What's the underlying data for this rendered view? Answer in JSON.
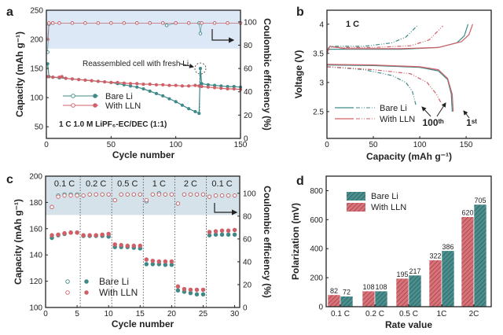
{
  "colors": {
    "bare_li": "#3f8a88",
    "with_lln": "#d06068",
    "shade_a": "#dde8f6",
    "shade_c": "#d5e2ea"
  },
  "chart_data": [
    {
      "panel": "a",
      "type": "scatter",
      "xlabel": "Cycle number",
      "ylabel": "Capacity (mAh g⁻¹)",
      "y2label": "Coulombic efficiency (%)",
      "xlim": [
        0,
        150
      ],
      "ylim": [
        30,
        250
      ],
      "y2lim": [
        0,
        110
      ],
      "xticks": [
        0,
        50,
        100,
        150
      ],
      "yticks": [
        50,
        100,
        150,
        200,
        250
      ],
      "y2ticks": [
        0,
        20,
        40,
        60,
        80,
        100
      ],
      "shaded_y2_from": 77,
      "condition": "1 C   1.0 M LiPF₆-EC/DEC (1:1)",
      "annotation": "Reassembled cell with fresh Li",
      "legend": [
        "Bare Li",
        "With LLN"
      ],
      "legend_position": "lower-left",
      "series": [
        {
          "name": "Bare Li",
          "kind": "capacity",
          "points": [
            [
              1,
              158
            ],
            [
              2,
              136
            ],
            [
              5,
              135
            ],
            [
              10,
              134
            ],
            [
              15,
              133
            ],
            [
              20,
              132
            ],
            [
              25,
              131
            ],
            [
              30,
              130
            ],
            [
              35,
              129
            ],
            [
              40,
              128
            ],
            [
              45,
              127
            ],
            [
              50,
              126
            ],
            [
              55,
              124
            ],
            [
              60,
              122
            ],
            [
              65,
              120
            ],
            [
              70,
              118
            ],
            [
              75,
              115
            ],
            [
              80,
              111
            ],
            [
              85,
              107
            ],
            [
              90,
              103
            ],
            [
              95,
              98
            ],
            [
              100,
              93
            ],
            [
              105,
              87
            ],
            [
              110,
              81
            ],
            [
              115,
              76
            ],
            [
              118,
              73
            ],
            [
              119,
              150
            ],
            [
              120,
              124
            ],
            [
              125,
              122
            ],
            [
              130,
              121
            ],
            [
              135,
              120
            ],
            [
              140,
              119
            ],
            [
              145,
              119
            ],
            [
              150,
              118
            ]
          ]
        },
        {
          "name": "With LLN",
          "kind": "capacity",
          "points": [
            [
              1,
              136
            ],
            [
              5,
              135
            ],
            [
              10,
              135
            ],
            [
              12,
              136
            ],
            [
              15,
              133
            ],
            [
              20,
              132
            ],
            [
              25,
              131
            ],
            [
              30,
              130
            ],
            [
              35,
              129
            ],
            [
              40,
              128
            ],
            [
              45,
              127
            ],
            [
              50,
              126
            ],
            [
              55,
              126
            ],
            [
              60,
              125
            ],
            [
              65,
              124
            ],
            [
              70,
              124
            ],
            [
              75,
              123
            ],
            [
              80,
              123
            ],
            [
              85,
              122
            ],
            [
              90,
              122
            ],
            [
              95,
              121
            ],
            [
              100,
              121
            ],
            [
              105,
              120
            ],
            [
              110,
              120
            ],
            [
              115,
              121
            ],
            [
              118,
              120
            ],
            [
              120,
              119
            ],
            [
              125,
              118
            ],
            [
              130,
              117
            ],
            [
              135,
              116
            ],
            [
              140,
              115
            ],
            [
              145,
              115
            ],
            [
              150,
              114
            ]
          ]
        },
        {
          "name": "Bare Li",
          "kind": "ce",
          "points": [
            [
              1,
              74
            ],
            [
              2,
              98
            ],
            [
              5,
              99
            ],
            [
              10,
              99
            ],
            [
              20,
              99
            ],
            [
              30,
              99
            ],
            [
              40,
              99
            ],
            [
              50,
              99
            ],
            [
              60,
              99
            ],
            [
              70,
              99
            ],
            [
              80,
              99
            ],
            [
              90,
              99
            ],
            [
              93,
              97
            ],
            [
              100,
              99
            ],
            [
              110,
              99
            ],
            [
              118,
              99
            ],
            [
              119,
              90
            ],
            [
              120,
              99
            ],
            [
              130,
              99
            ],
            [
              140,
              99
            ],
            [
              150,
              99
            ]
          ]
        },
        {
          "name": "With LLN",
          "kind": "ce",
          "points": [
            [
              1,
              85
            ],
            [
              2,
              99
            ],
            [
              5,
              99
            ],
            [
              10,
              99
            ],
            [
              20,
              99
            ],
            [
              30,
              99
            ],
            [
              40,
              99
            ],
            [
              50,
              99
            ],
            [
              60,
              99
            ],
            [
              70,
              99
            ],
            [
              80,
              99
            ],
            [
              90,
              99
            ],
            [
              100,
              99
            ],
            [
              110,
              99
            ],
            [
              120,
              99
            ],
            [
              130,
              99
            ],
            [
              140,
              99
            ],
            [
              150,
              99
            ]
          ]
        }
      ]
    },
    {
      "panel": "b",
      "type": "line",
      "xlabel": "Capacity (mAh g⁻¹)",
      "ylabel": "Voltage (V)",
      "xlim": [
        0,
        177
      ],
      "ylim": [
        2.04,
        4.24
      ],
      "xticks": [
        0,
        50,
        100,
        150
      ],
      "yticks": [
        2.5,
        3.0,
        3.5,
        4.0
      ],
      "rate": "1 C",
      "label_100th": "100ᵗʰ",
      "label_1st": "1ˢᵗ",
      "legend": [
        "Bare Li",
        "With LLN"
      ],
      "legend_position": "lower-left",
      "series": [
        {
          "name": "Bare Li",
          "cycle": "1st",
          "kind": "charge",
          "points": [
            [
              0,
              3.5
            ],
            [
              2,
              3.57
            ],
            [
              20,
              3.57
            ],
            [
              80,
              3.57
            ],
            [
              120,
              3.6
            ],
            [
              140,
              3.68
            ],
            [
              148,
              3.8
            ],
            [
              152,
              4.0
            ]
          ]
        },
        {
          "name": "With LLN",
          "cycle": "1st",
          "kind": "charge",
          "points": [
            [
              0,
              3.5
            ],
            [
              3,
              3.62
            ],
            [
              20,
              3.58
            ],
            [
              80,
              3.58
            ],
            [
              120,
              3.6
            ],
            [
              145,
              3.7
            ],
            [
              153,
              3.82
            ],
            [
              157,
              4.0
            ]
          ]
        },
        {
          "name": "Bare Li",
          "cycle": "1st",
          "kind": "discharge",
          "points": [
            [
              0,
              3.3
            ],
            [
              50,
              3.29
            ],
            [
              100,
              3.26
            ],
            [
              120,
              3.2
            ],
            [
              130,
              3.05
            ],
            [
              134,
              2.8
            ],
            [
              135,
              2.5
            ]
          ]
        },
        {
          "name": "With LLN",
          "cycle": "1st",
          "kind": "discharge",
          "points": [
            [
              0,
              3.31
            ],
            [
              50,
              3.3
            ],
            [
              100,
              3.27
            ],
            [
              120,
              3.22
            ],
            [
              130,
              3.07
            ],
            [
              135,
              2.8
            ],
            [
              136,
              2.5
            ]
          ]
        },
        {
          "name": "Bare Li",
          "cycle": "100th",
          "kind": "charge",
          "points": [
            [
              0,
              3.55
            ],
            [
              3,
              3.62
            ],
            [
              40,
              3.62
            ],
            [
              70,
              3.68
            ],
            [
              85,
              3.78
            ],
            [
              97,
              3.97
            ]
          ]
        },
        {
          "name": "With LLN",
          "cycle": "100th",
          "kind": "charge",
          "points": [
            [
              0,
              3.55
            ],
            [
              3,
              3.6
            ],
            [
              50,
              3.6
            ],
            [
              90,
              3.63
            ],
            [
              110,
              3.73
            ],
            [
              125,
              3.97
            ]
          ]
        },
        {
          "name": "Bare Li",
          "cycle": "100th",
          "kind": "discharge",
          "points": [
            [
              0,
              3.27
            ],
            [
              40,
              3.22
            ],
            [
              70,
              3.12
            ],
            [
              85,
              3.0
            ],
            [
              92,
              2.85
            ],
            [
              96,
              2.6
            ]
          ]
        },
        {
          "name": "With LLN",
          "cycle": "100th",
          "kind": "discharge",
          "points": [
            [
              0,
              3.27
            ],
            [
              50,
              3.22
            ],
            [
              90,
              3.15
            ],
            [
              108,
              3.0
            ],
            [
              118,
              2.8
            ],
            [
              123,
              2.65
            ]
          ]
        }
      ]
    },
    {
      "panel": "c",
      "type": "scatter",
      "xlabel": "Cycle number",
      "ylabel": "Capacity (mAh g⁻¹)",
      "y2label": "Coulombic efficiency (%)",
      "xlim": [
        0,
        30.8
      ],
      "ylim": [
        100,
        200
      ],
      "y2lim": [
        0,
        115
      ],
      "xticks": [
        0,
        5,
        10,
        15,
        20,
        25,
        30
      ],
      "yticks": [
        100,
        120,
        140,
        160,
        180,
        200
      ],
      "y2ticks": [
        0,
        20,
        40,
        60,
        80,
        100
      ],
      "shaded_y2_from": 81,
      "rate_segments": [
        {
          "label": "0.1 C",
          "from": 0.5,
          "to": 5.5
        },
        {
          "label": "0.2 C",
          "from": 5.5,
          "to": 10.5
        },
        {
          "label": "0.5 C",
          "from": 10.5,
          "to": 15.5
        },
        {
          "label": "1 C",
          "from": 15.5,
          "to": 20.5
        },
        {
          "label": "2 C",
          "from": 20.5,
          "to": 25.5
        },
        {
          "label": "0.1 C",
          "from": 25.5,
          "to": 30.5
        }
      ],
      "legend": [
        "Bare Li",
        "With LLN"
      ],
      "legend_position": "lower-left",
      "cycles": [
        1,
        2,
        3,
        4,
        5,
        6,
        7,
        8,
        9,
        10,
        11,
        12,
        13,
        14,
        15,
        16,
        17,
        18,
        19,
        20,
        21,
        22,
        23,
        24,
        25,
        26,
        27,
        28,
        29,
        30
      ],
      "series": [
        {
          "name": "Bare Li",
          "kind": "capacity",
          "values": [
            153,
            155,
            156,
            157,
            157,
            154.5,
            154.5,
            154.5,
            154.5,
            154,
            146,
            146,
            146,
            145.5,
            145,
            133,
            133,
            133,
            132.5,
            132.5,
            113,
            112,
            111,
            110,
            110,
            155,
            155.5,
            155.5,
            155.5,
            155.5
          ]
        },
        {
          "name": "With LLN",
          "kind": "capacity",
          "values": [
            155,
            155.5,
            156.5,
            157,
            157,
            155,
            155,
            155,
            155.5,
            156,
            148,
            147.5,
            147,
            147,
            147,
            136.5,
            135.5,
            135,
            135,
            135,
            116,
            114,
            113.5,
            113.5,
            113.5,
            157.5,
            158,
            158.5,
            158.5,
            159
          ]
        },
        {
          "name": "Bare Li",
          "kind": "ce",
          "values": [
            88,
            98,
            99,
            99,
            99,
            98,
            99,
            99,
            99,
            99,
            94,
            99,
            99,
            99,
            99,
            93,
            99,
            100,
            99,
            99,
            91,
            99,
            99,
            99,
            99,
            97,
            98,
            98,
            98,
            98
          ]
        },
        {
          "name": "With LLN",
          "kind": "ce",
          "values": [
            88,
            97,
            98,
            98,
            98,
            98,
            99,
            99,
            99,
            99,
            94,
            99,
            99,
            99,
            99,
            94,
            99,
            99,
            99,
            99,
            91,
            99,
            99,
            99,
            99,
            97,
            98,
            98,
            98,
            98
          ]
        }
      ]
    },
    {
      "panel": "d",
      "type": "bar",
      "xlabel": "Rate value",
      "ylabel": "Polarization (mV)",
      "ylim": [
        0,
        900
      ],
      "yticks": [
        0,
        200,
        400,
        600,
        800
      ],
      "categories": [
        "0.1 C",
        "0.2 C",
        "0.5 C",
        "1C",
        "2C"
      ],
      "legend": [
        "Bare Li",
        "With LLN"
      ],
      "legend_position": "top-left",
      "series": [
        {
          "name": "With LLN",
          "values": [
            82,
            108,
            195,
            322,
            620
          ]
        },
        {
          "name": "Bare Li",
          "values": [
            72,
            108,
            217,
            386,
            705
          ]
        }
      ]
    }
  ]
}
